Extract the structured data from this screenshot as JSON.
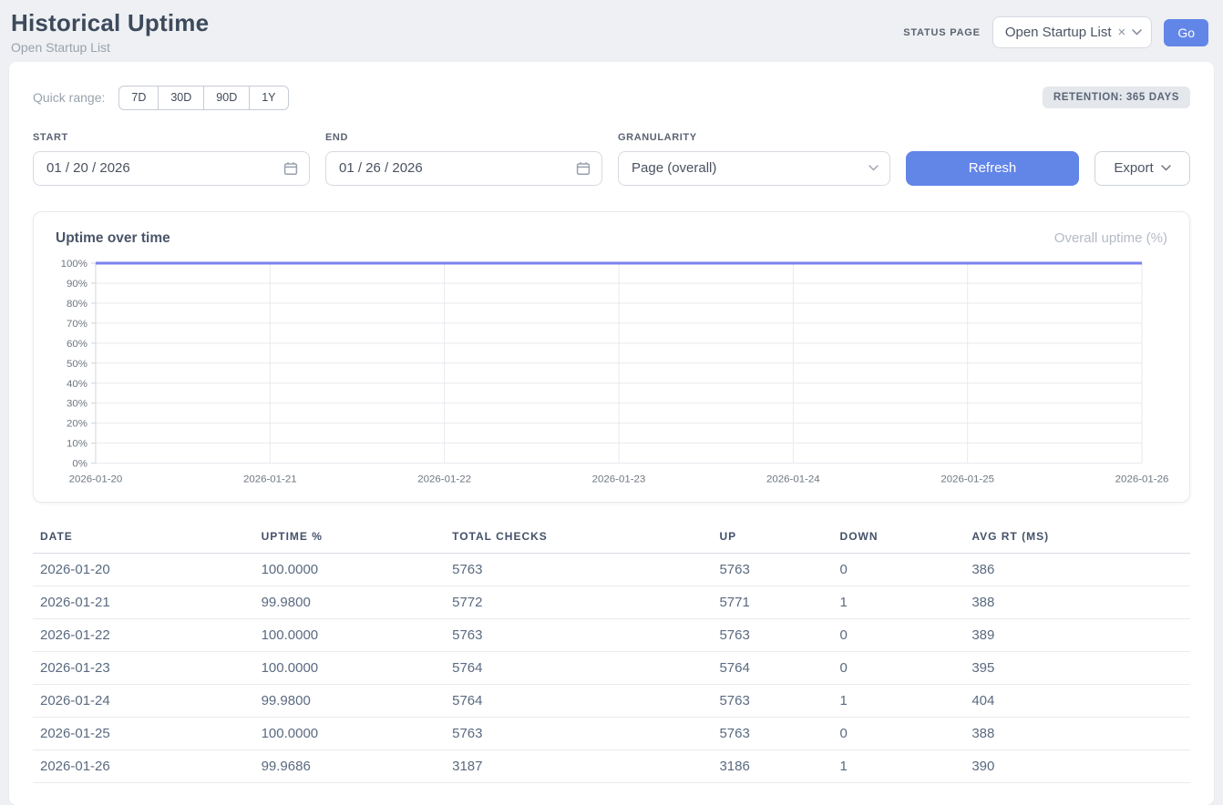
{
  "header": {
    "title": "Historical Uptime",
    "subtitle": "Open Startup List",
    "status_page_label": "STATUS PAGE",
    "status_page_value": "Open Startup List",
    "status_page_clear": "×",
    "go_label": "Go"
  },
  "controls": {
    "quick_range_label": "Quick range:",
    "quick_ranges": [
      "7D",
      "30D",
      "90D",
      "1Y"
    ],
    "retention_badge": "RETENTION: 365 DAYS",
    "start_label": "START",
    "start_value": "01 / 20 / 2026",
    "end_label": "END",
    "end_value": "01 / 26 / 2026",
    "granularity_label": "GRANULARITY",
    "granularity_value": "Page (overall)",
    "refresh_label": "Refresh",
    "export_label": "Export"
  },
  "chart": {
    "title": "Uptime over time",
    "legend": "Overall uptime (%)"
  },
  "chart_data": {
    "type": "line",
    "title": "Uptime over time",
    "categories": [
      "2026-01-20",
      "2026-01-21",
      "2026-01-22",
      "2026-01-23",
      "2026-01-24",
      "2026-01-25",
      "2026-01-26"
    ],
    "series": [
      {
        "name": "Overall uptime (%)",
        "values": [
          100.0,
          99.98,
          100.0,
          100.0,
          99.98,
          100.0,
          99.9686
        ]
      }
    ],
    "xlabel": "",
    "ylabel": "",
    "ylim": [
      0,
      100
    ],
    "ytick_step": 10,
    "ytick_suffix": "%",
    "grid": true,
    "legend_position": "top-right",
    "line_color": "#7b82ee"
  },
  "table": {
    "columns": [
      "DATE",
      "UPTIME %",
      "TOTAL CHECKS",
      "UP",
      "DOWN",
      "AVG RT (MS)"
    ],
    "col_widths_pct": [
      19.1,
      16.5,
      23.1,
      10.4,
      11.4,
      19.5
    ],
    "rows": [
      [
        "2026-01-20",
        "100.0000",
        "5763",
        "5763",
        "0",
        "386"
      ],
      [
        "2026-01-21",
        "99.9800",
        "5772",
        "5771",
        "1",
        "388"
      ],
      [
        "2026-01-22",
        "100.0000",
        "5763",
        "5763",
        "0",
        "389"
      ],
      [
        "2026-01-23",
        "100.0000",
        "5764",
        "5764",
        "0",
        "395"
      ],
      [
        "2026-01-24",
        "99.9800",
        "5764",
        "5763",
        "1",
        "404"
      ],
      [
        "2026-01-25",
        "100.0000",
        "5763",
        "5763",
        "0",
        "388"
      ],
      [
        "2026-01-26",
        "99.9686",
        "3187",
        "3186",
        "1",
        "390"
      ]
    ]
  },
  "colors": {
    "accent_blue": "#6285e8",
    "line_purple": "#7b82ee",
    "page_bg": "#eef0f3",
    "grid_line": "#e7e9ed",
    "axis_text": "#6e7781"
  }
}
